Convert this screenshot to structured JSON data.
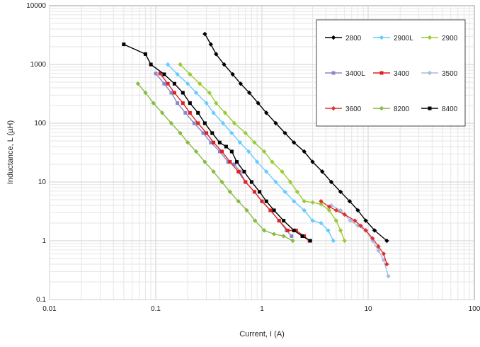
{
  "chart_data": {
    "type": "line",
    "title": "",
    "xlabel": "Current, I (A)",
    "ylabel": "Inductance, L (µH)",
    "x_scale": "log",
    "y_scale": "log",
    "xlim": [
      0.01,
      100
    ],
    "ylim": [
      0.1,
      10000
    ],
    "grid": true,
    "legend_position": "top-right",
    "x_ticks": [
      {
        "value": 0.01,
        "label": "0.01"
      },
      {
        "value": 0.1,
        "label": "0.1"
      },
      {
        "value": 1,
        "label": "1"
      },
      {
        "value": 10,
        "label": "10"
      },
      {
        "value": 100,
        "label": "100"
      }
    ],
    "y_ticks": [
      {
        "value": 0.1,
        "label": "0.1"
      },
      {
        "value": 1,
        "label": "1"
      },
      {
        "value": 10,
        "label": "10"
      },
      {
        "value": 100,
        "label": "100"
      },
      {
        "value": 1000,
        "label": "1000"
      },
      {
        "value": 10000,
        "label": "10000"
      }
    ],
    "series": [
      {
        "name": "2800",
        "color": "#000000",
        "marker": "diamond",
        "points": [
          [
            0.29,
            3300
          ],
          [
            0.33,
            2200
          ],
          [
            0.37,
            1500
          ],
          [
            0.44,
            1000
          ],
          [
            0.53,
            680
          ],
          [
            0.63,
            470
          ],
          [
            0.76,
            330
          ],
          [
            0.92,
            220
          ],
          [
            1.1,
            150
          ],
          [
            1.35,
            100
          ],
          [
            1.65,
            68
          ],
          [
            2.0,
            47
          ],
          [
            2.5,
            33
          ],
          [
            3.0,
            22
          ],
          [
            3.7,
            15
          ],
          [
            4.5,
            10
          ],
          [
            5.5,
            6.8
          ],
          [
            6.7,
            4.7
          ],
          [
            8.0,
            3.3
          ],
          [
            9.5,
            2.2
          ],
          [
            11.5,
            1.5
          ],
          [
            15.0,
            1.0
          ]
        ]
      },
      {
        "name": "2900L",
        "color": "#66ccff",
        "marker": "diamond",
        "points": [
          [
            0.13,
            1000
          ],
          [
            0.16,
            680
          ],
          [
            0.2,
            470
          ],
          [
            0.24,
            330
          ],
          [
            0.3,
            220
          ],
          [
            0.35,
            150
          ],
          [
            0.43,
            100
          ],
          [
            0.52,
            68
          ],
          [
            0.62,
            47
          ],
          [
            0.75,
            33
          ],
          [
            0.9,
            22
          ],
          [
            1.1,
            15
          ],
          [
            1.35,
            10
          ],
          [
            1.65,
            6.8
          ],
          [
            2.0,
            4.7
          ],
          [
            2.5,
            3.3
          ],
          [
            3.0,
            2.2
          ],
          [
            3.6,
            2.0
          ],
          [
            4.2,
            1.5
          ],
          [
            4.7,
            1.0
          ]
        ]
      },
      {
        "name": "2900",
        "color": "#99cc33",
        "marker": "diamond",
        "points": [
          [
            0.17,
            1000
          ],
          [
            0.21,
            680
          ],
          [
            0.26,
            470
          ],
          [
            0.32,
            330
          ],
          [
            0.37,
            220
          ],
          [
            0.45,
            150
          ],
          [
            0.55,
            100
          ],
          [
            0.7,
            68
          ],
          [
            0.85,
            47
          ],
          [
            1.05,
            33
          ],
          [
            1.25,
            22
          ],
          [
            1.55,
            15
          ],
          [
            1.85,
            10
          ],
          [
            2.15,
            6.8
          ],
          [
            2.5,
            4.7
          ],
          [
            3.0,
            4.5
          ],
          [
            3.6,
            4.2
          ],
          [
            4.3,
            3.3
          ],
          [
            5.0,
            2.2
          ],
          [
            5.5,
            1.5
          ],
          [
            6.0,
            1.0
          ]
        ]
      },
      {
        "name": "3400L",
        "color": "#8888cc",
        "marker": "square",
        "points": [
          [
            0.1,
            700
          ],
          [
            0.12,
            470
          ],
          [
            0.14,
            330
          ],
          [
            0.16,
            220
          ],
          [
            0.19,
            150
          ],
          [
            0.23,
            100
          ],
          [
            0.28,
            68
          ],
          [
            0.33,
            47
          ],
          [
            0.4,
            33
          ],
          [
            0.48,
            22
          ],
          [
            0.55,
            20
          ],
          [
            0.62,
            15
          ],
          [
            0.7,
            10
          ],
          [
            0.85,
            6.8
          ],
          [
            1.0,
            4.7
          ],
          [
            1.2,
            3.3
          ],
          [
            1.45,
            2.2
          ],
          [
            1.7,
            1.5
          ],
          [
            1.9,
            1.2
          ]
        ]
      },
      {
        "name": "3400",
        "color": "#dd2222",
        "marker": "square",
        "points": [
          [
            0.11,
            700
          ],
          [
            0.13,
            470
          ],
          [
            0.15,
            330
          ],
          [
            0.18,
            220
          ],
          [
            0.21,
            150
          ],
          [
            0.25,
            100
          ],
          [
            0.3,
            68
          ],
          [
            0.35,
            47
          ],
          [
            0.42,
            33
          ],
          [
            0.5,
            22
          ],
          [
            0.6,
            15
          ],
          [
            0.7,
            10
          ],
          [
            0.85,
            6.8
          ],
          [
            1.0,
            4.7
          ],
          [
            1.2,
            3.3
          ],
          [
            1.45,
            2.2
          ],
          [
            1.75,
            1.5
          ],
          [
            2.1,
            1.5
          ],
          [
            2.5,
            1.2
          ],
          [
            2.8,
            1.0
          ]
        ]
      },
      {
        "name": "3500",
        "color": "#aabbdd",
        "marker": "diamond",
        "points": [
          [
            4.5,
            4.0
          ],
          [
            5.5,
            3.3
          ],
          [
            6.8,
            2.2
          ],
          [
            8.0,
            1.8
          ],
          [
            9.5,
            1.5
          ],
          [
            11.0,
            1.0
          ],
          [
            12.5,
            0.68
          ],
          [
            14.0,
            0.47
          ],
          [
            15.5,
            0.25
          ]
        ]
      },
      {
        "name": "3600",
        "color": "#dd3333",
        "marker": "diamond",
        "points": [
          [
            3.6,
            4.7
          ],
          [
            4.3,
            3.8
          ],
          [
            5.0,
            3.3
          ],
          [
            6.0,
            2.8
          ],
          [
            7.5,
            2.2
          ],
          [
            8.5,
            1.8
          ],
          [
            9.5,
            1.5
          ],
          [
            11.0,
            1.1
          ],
          [
            12.5,
            0.8
          ],
          [
            14.0,
            0.6
          ],
          [
            15.0,
            0.4
          ]
        ]
      },
      {
        "name": "8200",
        "color": "#88bb44",
        "marker": "diamond",
        "points": [
          [
            0.068,
            470
          ],
          [
            0.08,
            330
          ],
          [
            0.095,
            220
          ],
          [
            0.115,
            150
          ],
          [
            0.14,
            100
          ],
          [
            0.17,
            68
          ],
          [
            0.2,
            47
          ],
          [
            0.24,
            33
          ],
          [
            0.29,
            22
          ],
          [
            0.35,
            15
          ],
          [
            0.42,
            10
          ],
          [
            0.5,
            6.8
          ],
          [
            0.6,
            4.7
          ],
          [
            0.72,
            3.3
          ],
          [
            0.86,
            2.2
          ],
          [
            1.05,
            1.5
          ],
          [
            1.3,
            1.3
          ],
          [
            1.6,
            1.2
          ],
          [
            1.95,
            1.0
          ]
        ]
      },
      {
        "name": "8400",
        "color": "#000000",
        "marker": "square",
        "points": [
          [
            0.05,
            2200
          ],
          [
            0.08,
            1500
          ],
          [
            0.09,
            1000
          ],
          [
            0.12,
            680
          ],
          [
            0.15,
            470
          ],
          [
            0.18,
            330
          ],
          [
            0.21,
            220
          ],
          [
            0.25,
            150
          ],
          [
            0.29,
            100
          ],
          [
            0.34,
            68
          ],
          [
            0.4,
            47
          ],
          [
            0.46,
            40
          ],
          [
            0.52,
            33
          ],
          [
            0.58,
            22
          ],
          [
            0.68,
            15
          ],
          [
            0.8,
            10
          ],
          [
            0.95,
            6.8
          ],
          [
            1.1,
            4.7
          ],
          [
            1.3,
            3.3
          ],
          [
            1.6,
            2.2
          ],
          [
            2.0,
            1.5
          ],
          [
            2.4,
            1.2
          ],
          [
            2.85,
            1.0
          ]
        ]
      }
    ]
  }
}
